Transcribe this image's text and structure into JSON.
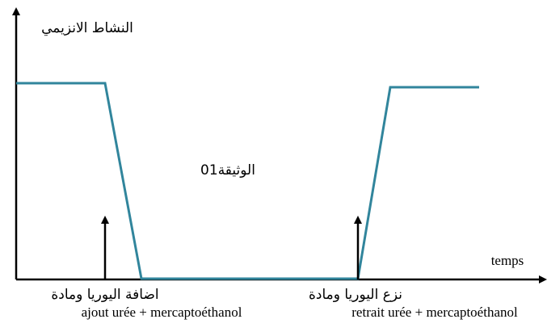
{
  "y_axis_label": "النشاط الانزيمي",
  "x_axis_label": "temps",
  "document_label": "الوثيقة01",
  "annotations": [
    {
      "arabic": "اضافة اليوريا ومادة",
      "french": "ajout urée + mercaptoéthanol"
    },
    {
      "arabic": "نزع اليوريا ومادة",
      "french": "retrait urée + mercaptoéthanol"
    }
  ]
}
